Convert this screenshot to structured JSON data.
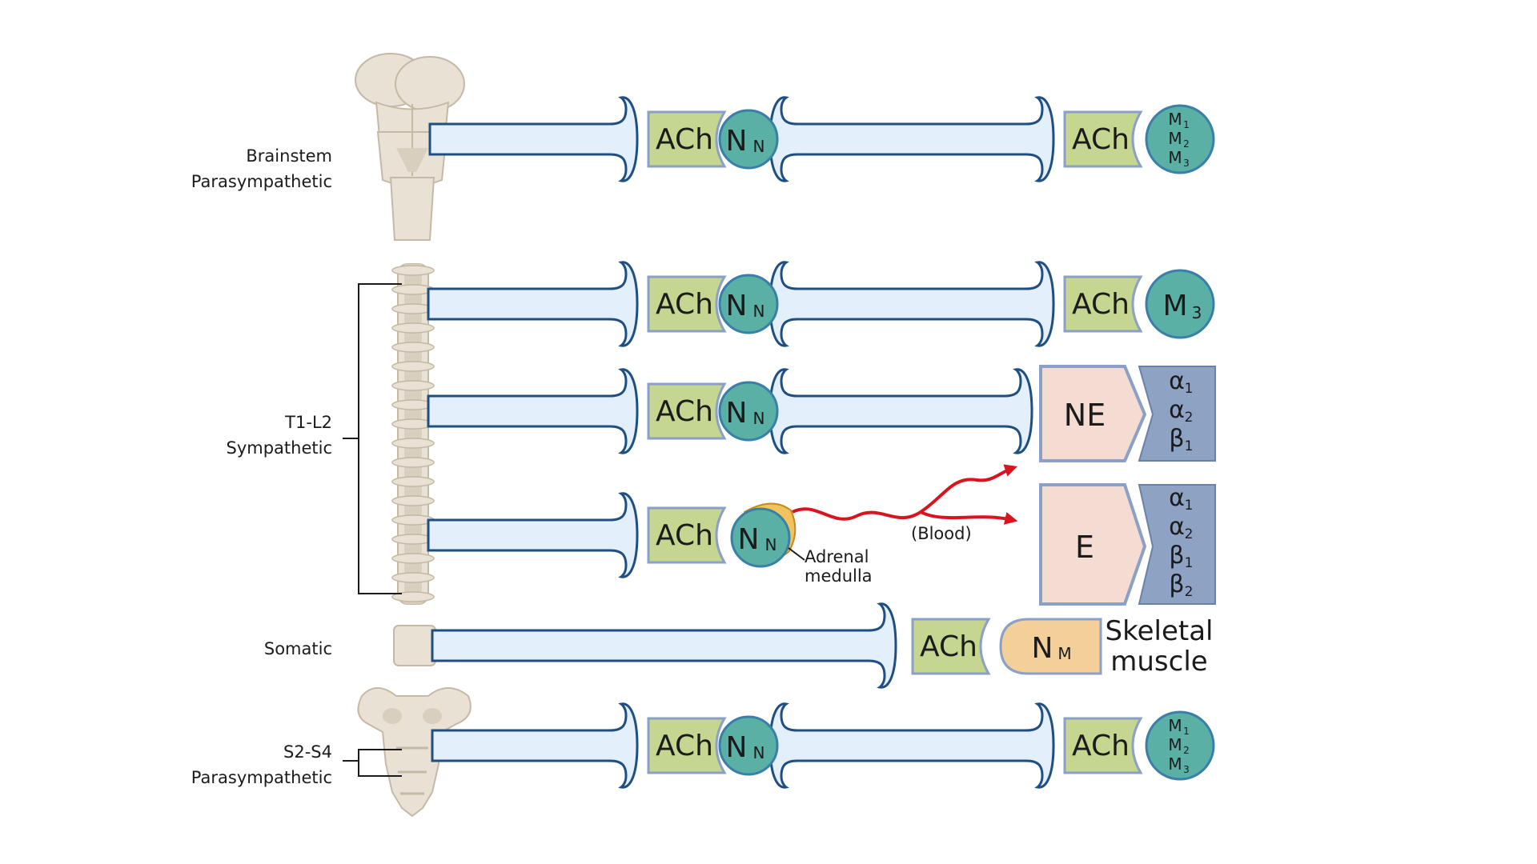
{
  "labels": {
    "brainstem_line1": "Brainstem",
    "brainstem_line2": "Parasympathetic",
    "t1l2_line1": "T1-L2",
    "t1l2_line2": "Sympathetic",
    "somatic": "Somatic",
    "s2s4_line1": "S2-S4",
    "s2s4_line2": "Parasympathetic"
  },
  "transmitters": {
    "ach": "ACh",
    "ne": "NE",
    "e": "E"
  },
  "receptors": {
    "nn_main": "N",
    "nn_sub": "N",
    "nm_main": "N",
    "nm_sub": "M",
    "m_main": "M",
    "m1_sub": "1",
    "m2_sub": "2",
    "m3_sub": "3",
    "alpha": "α",
    "beta": "β",
    "sub1": "1",
    "sub2": "2"
  },
  "annotations": {
    "adrenal_line1": "Adrenal",
    "adrenal_line2": "medulla",
    "blood": "(Blood)",
    "skeletal_line1": "Skeletal",
    "skeletal_line2": "muscle"
  },
  "colors": {
    "axon_fill": "#e3effb",
    "axon_stroke": "#1f4f82",
    "ach_box": "#c4d68f",
    "nicotinic_receptor": "#5bb0a6",
    "target_cell": "#f5dcd3",
    "adrenergic_receptor": "#8ea3c4",
    "adrenal_gland": "#f2c35c",
    "blood_arrow": "#d9141e",
    "nm_receptor": "#f3cf9a"
  }
}
